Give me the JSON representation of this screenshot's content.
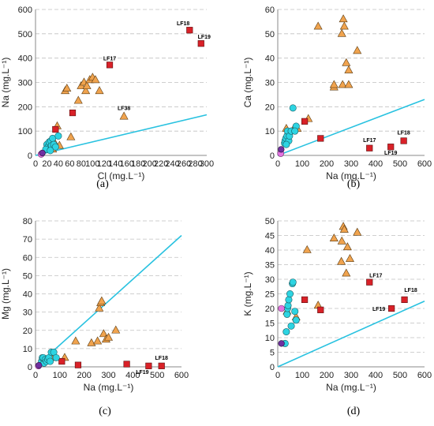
{
  "colors": {
    "tri_fill": "#F0A34E",
    "sq_fill": "#D92128",
    "circ_fill": "#2DD4E2",
    "mag_fill": "#E474E0",
    "pur_fill": "#7030A0",
    "line": "#29C2E0",
    "grid": "#C0C0C0"
  },
  "chart_data": [
    {
      "type": "scatter",
      "panel_label": "(a)",
      "xlabel": "Cl (mg.L⁻¹)",
      "ylabel": "Na (mg.L⁻¹)",
      "xlim": [
        0,
        300
      ],
      "ylim": [
        0,
        600
      ],
      "xticks": [
        0,
        20,
        40,
        60,
        80,
        100,
        120,
        140,
        160,
        180,
        200,
        220,
        240,
        260,
        280,
        300
      ],
      "yticks": [
        0,
        100,
        200,
        300,
        400,
        500,
        600
      ],
      "grid": true,
      "reference_line": [
        [
          0,
          0
        ],
        [
          300,
          167
        ]
      ],
      "series": [
        {
          "marker": "triangle",
          "points": [
            [
              38,
              120
            ],
            [
              35,
              45
            ],
            [
              52,
              265
            ],
            [
              55,
              275
            ],
            [
              62,
              75
            ],
            [
              75,
              225
            ],
            [
              80,
              285
            ],
            [
              85,
              300
            ],
            [
              88,
              265
            ],
            [
              90,
              285
            ],
            [
              95,
              310
            ],
            [
              100,
              320
            ],
            [
              105,
              310
            ],
            [
              112,
              265
            ],
            [
              155,
              160
            ],
            [
              42,
              40
            ],
            [
              30,
              25
            ]
          ]
        },
        {
          "marker": "square",
          "points": [
            [
              35,
              107
            ],
            [
              65,
              175
            ],
            [
              130,
              372
            ],
            [
              270,
              515
            ],
            [
              290,
              460
            ]
          ]
        },
        {
          "marker": "circle",
          "points": [
            [
              20,
              45
            ],
            [
              22,
              35
            ],
            [
              24,
              55
            ],
            [
              25,
              30
            ],
            [
              27,
              60
            ],
            [
              28,
              40
            ],
            [
              30,
              70
            ],
            [
              32,
              45
            ],
            [
              35,
              35
            ],
            [
              40,
              80
            ],
            [
              18,
              25
            ],
            [
              26,
              20
            ]
          ]
        },
        {
          "marker": "circle-magenta",
          "points": [
            [
              10,
              5
            ]
          ]
        },
        {
          "marker": "circle-purple",
          "points": [
            [
              12,
              10
            ]
          ]
        }
      ],
      "annotations": [
        {
          "text": "LF18",
          "x": 270,
          "y": 515
        },
        {
          "text": "LF19",
          "x": 290,
          "y": 460
        },
        {
          "text": "LF17",
          "x": 130,
          "y": 372
        },
        {
          "text": "LF38",
          "x": 155,
          "y": 160
        }
      ]
    },
    {
      "type": "scatter",
      "panel_label": "(b)",
      "xlabel": "Na (mg.L⁻¹)",
      "ylabel": "Ca (mg.L⁻¹)",
      "xlim": [
        0,
        600
      ],
      "ylim": [
        0,
        60
      ],
      "xticks": [
        0,
        100,
        200,
        300,
        400,
        500,
        600
      ],
      "yticks": [
        0,
        10,
        20,
        30,
        40,
        50,
        60
      ],
      "grid": true,
      "reference_line": [
        [
          0,
          0
        ],
        [
          600,
          23
        ]
      ],
      "series": [
        {
          "marker": "triangle",
          "points": [
            [
              35,
              11
            ],
            [
              60,
              10
            ],
            [
              80,
              11
            ],
            [
              125,
              15
            ],
            [
              165,
              53
            ],
            [
              230,
              28
            ],
            [
              230,
              29
            ],
            [
              265,
              29
            ],
            [
              262,
              50
            ],
            [
              268,
              56
            ],
            [
              272,
              53
            ],
            [
              280,
              38
            ],
            [
              290,
              35
            ],
            [
              290,
              29
            ],
            [
              325,
              43
            ]
          ]
        },
        {
          "marker": "square",
          "points": [
            [
              110,
              14
            ],
            [
              175,
              7
            ],
            [
              375,
              3
            ],
            [
              462,
              3.5
            ],
            [
              515,
              6
            ]
          ]
        },
        {
          "marker": "circle",
          "points": [
            [
              28,
              5
            ],
            [
              30,
              6
            ],
            [
              33,
              7
            ],
            [
              38,
              8
            ],
            [
              40,
              10
            ],
            [
              45,
              6
            ],
            [
              48,
              8
            ],
            [
              55,
              10
            ],
            [
              62,
              19.5
            ],
            [
              75,
              12
            ],
            [
              35,
              4.5
            ],
            [
              70,
              10
            ]
          ]
        },
        {
          "marker": "circle-magenta",
          "points": [
            [
              12,
              0.8
            ]
          ]
        },
        {
          "marker": "circle-purple",
          "points": [
            [
              14,
              2.5
            ]
          ]
        }
      ],
      "annotations": [
        {
          "text": "LF17",
          "x": 375,
          "y": 3
        },
        {
          "text": "LF19",
          "x": 462,
          "y": 3.5
        },
        {
          "text": "LF18",
          "x": 515,
          "y": 6
        }
      ]
    },
    {
      "type": "scatter",
      "panel_label": "(c)",
      "xlabel": "Na (mg.L⁻¹)",
      "ylabel": "Mg (mg.L⁻¹)",
      "xlim": [
        0,
        600
      ],
      "ylim": [
        0,
        80
      ],
      "xticks": [
        0,
        100,
        200,
        300,
        400,
        500,
        600
      ],
      "yticks": [
        0,
        10,
        20,
        30,
        40,
        50,
        60,
        70,
        80
      ],
      "grid": true,
      "reference_line": [
        [
          0,
          0
        ],
        [
          600,
          72
        ]
      ],
      "series": [
        {
          "marker": "triangle",
          "points": [
            [
              40,
              4
            ],
            [
              75,
              5
            ],
            [
              120,
              5
            ],
            [
              165,
              14
            ],
            [
              230,
              13
            ],
            [
              255,
              14
            ],
            [
              262,
              32
            ],
            [
              268,
              35
            ],
            [
              272,
              36
            ],
            [
              280,
              18
            ],
            [
              290,
              15
            ],
            [
              300,
              16
            ],
            [
              330,
              20
            ]
          ]
        },
        {
          "marker": "square",
          "points": [
            [
              108,
              3
            ],
            [
              175,
              1
            ],
            [
              375,
              1.5
            ],
            [
              465,
              0.5
            ],
            [
              518,
              0.5
            ]
          ]
        },
        {
          "marker": "circle",
          "points": [
            [
              25,
              3
            ],
            [
              28,
              5
            ],
            [
              32,
              5
            ],
            [
              35,
              2
            ],
            [
              40,
              4
            ],
            [
              45,
              3
            ],
            [
              50,
              4
            ],
            [
              55,
              5
            ],
            [
              60,
              3
            ],
            [
              65,
              8
            ],
            [
              75,
              8
            ],
            [
              85,
              5
            ]
          ]
        },
        {
          "marker": "circle-magenta",
          "points": [
            [
              12,
              0.5
            ]
          ]
        },
        {
          "marker": "circle-purple",
          "points": [
            [
              14,
              0.8
            ]
          ]
        }
      ],
      "annotations": [
        {
          "text": "LF18",
          "x": 518,
          "y": 0.5
        },
        {
          "text": "LF19",
          "x": 465,
          "y": 0.5
        }
      ]
    },
    {
      "type": "scatter",
      "panel_label": "(d)",
      "xlabel": "Na (mg.L⁻¹)",
      "ylabel": "K (mg.L⁻¹)",
      "xlim": [
        0,
        600
      ],
      "ylim": [
        0,
        50
      ],
      "xticks": [
        0,
        100,
        200,
        300,
        400,
        500,
        600
      ],
      "yticks": [
        0,
        5,
        10,
        15,
        20,
        25,
        30,
        35,
        40,
        45,
        50
      ],
      "grid": true,
      "reference_line": [
        [
          0,
          0
        ],
        [
          600,
          22.5
        ]
      ],
      "series": [
        {
          "marker": "triangle",
          "points": [
            [
              38,
              19
            ],
            [
              75,
              17
            ],
            [
              120,
              40
            ],
            [
              165,
              21
            ],
            [
              230,
              44
            ],
            [
              260,
              36
            ],
            [
              262,
              43
            ],
            [
              268,
              48
            ],
            [
              272,
              47
            ],
            [
              280,
              32
            ],
            [
              285,
              41
            ],
            [
              295,
              37
            ],
            [
              325,
              46
            ]
          ]
        },
        {
          "marker": "square",
          "points": [
            [
              110,
              23
            ],
            [
              175,
              19.5
            ],
            [
              375,
              29
            ],
            [
              465,
              20
            ],
            [
              518,
              23
            ]
          ]
        },
        {
          "marker": "circle",
          "points": [
            [
              30,
              8
            ],
            [
              35,
              12
            ],
            [
              38,
              18
            ],
            [
              40,
              20
            ],
            [
              42,
              21
            ],
            [
              45,
              23
            ],
            [
              50,
              25
            ],
            [
              55,
              14
            ],
            [
              60,
              28.5
            ],
            [
              62,
              29
            ],
            [
              70,
              19
            ],
            [
              75,
              16
            ]
          ]
        },
        {
          "marker": "circle-magenta",
          "points": [
            [
              15,
              20
            ]
          ]
        },
        {
          "marker": "circle-purple",
          "points": [
            [
              15,
              8
            ]
          ]
        }
      ],
      "annotations": [
        {
          "text": "LF17",
          "x": 375,
          "y": 29
        },
        {
          "text": "LF18",
          "x": 518,
          "y": 23
        },
        {
          "text": "LF19",
          "x": 465,
          "y": 20
        }
      ]
    }
  ]
}
